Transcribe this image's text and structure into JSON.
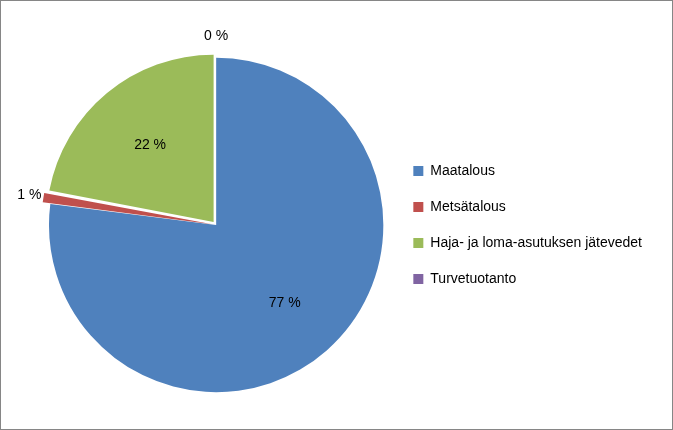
{
  "chart_data": {
    "type": "pie",
    "categories": [
      "Maatalous",
      "Metsätalous",
      "Haja- ja loma-asutuksen jätevedet",
      "Turvetuotanto"
    ],
    "values": [
      77,
      1,
      22,
      0
    ],
    "value_labels": [
      "77 %",
      "1 %",
      "22 %",
      "0 %"
    ],
    "colors": [
      "#4f81bd",
      "#c0504d",
      "#9bbb59",
      "#8064a2"
    ],
    "legend": "right",
    "data_labels": true
  }
}
